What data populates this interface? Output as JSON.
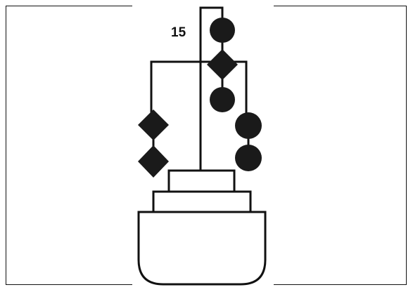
{
  "figure": {
    "label": "15",
    "colors": {
      "ink": "#111111",
      "paper": "#ffffff"
    }
  }
}
